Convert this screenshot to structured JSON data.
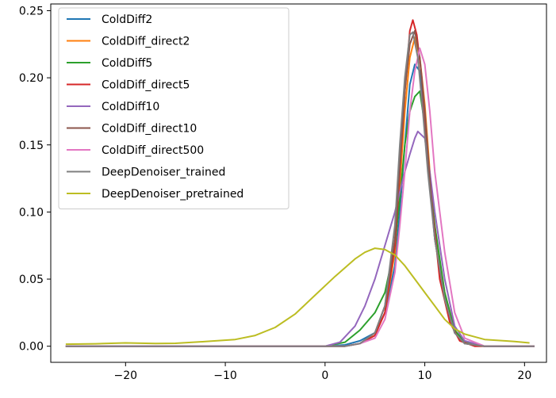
{
  "chart_data": {
    "type": "line",
    "xlim": [
      -27.5,
      22.2
    ],
    "ylim": [
      -0.012,
      0.255
    ],
    "xticks": [
      -20,
      -10,
      0,
      10,
      20
    ],
    "xtick_labels": [
      "−20",
      "−10",
      "0",
      "10",
      "20"
    ],
    "yticks": [
      0.0,
      0.05,
      0.1,
      0.15,
      0.2,
      0.25
    ],
    "ytick_labels": [
      "0.00",
      "0.05",
      "0.10",
      "0.15",
      "0.20",
      "0.25"
    ],
    "grid": false,
    "legend_position": "top-left",
    "series": [
      {
        "name": "ColdDiff2",
        "color": "#1f77b4",
        "points": [
          [
            -26,
            0.0
          ],
          [
            0,
            0.0
          ],
          [
            2,
            0.001
          ],
          [
            3.5,
            0.004
          ],
          [
            5,
            0.01
          ],
          [
            6,
            0.025
          ],
          [
            7,
            0.06
          ],
          [
            7.5,
            0.1
          ],
          [
            8,
            0.15
          ],
          [
            8.5,
            0.195
          ],
          [
            9,
            0.21
          ],
          [
            9.5,
            0.205
          ],
          [
            10,
            0.17
          ],
          [
            10.5,
            0.12
          ],
          [
            11,
            0.08
          ],
          [
            12,
            0.035
          ],
          [
            13,
            0.01
          ],
          [
            14,
            0.002
          ],
          [
            16,
            0.0
          ],
          [
            21,
            0.0
          ]
        ]
      },
      {
        "name": "ColdDiff_direct2",
        "color": "#ff7f0e",
        "points": [
          [
            -26,
            0.0
          ],
          [
            0,
            0.0
          ],
          [
            2,
            0.0
          ],
          [
            3.5,
            0.002
          ],
          [
            5,
            0.008
          ],
          [
            6,
            0.025
          ],
          [
            7,
            0.07
          ],
          [
            7.5,
            0.12
          ],
          [
            8,
            0.175
          ],
          [
            8.5,
            0.215
          ],
          [
            9,
            0.23
          ],
          [
            9.5,
            0.215
          ],
          [
            10,
            0.18
          ],
          [
            10.5,
            0.13
          ],
          [
            11,
            0.085
          ],
          [
            12,
            0.04
          ],
          [
            13,
            0.012
          ],
          [
            14,
            0.003
          ],
          [
            16,
            0.0
          ],
          [
            21,
            0.0
          ]
        ]
      },
      {
        "name": "ColdDiff5",
        "color": "#2ca02c",
        "points": [
          [
            -26,
            0.0
          ],
          [
            0,
            0.0
          ],
          [
            2,
            0.003
          ],
          [
            3.5,
            0.012
          ],
          [
            5,
            0.025
          ],
          [
            6,
            0.04
          ],
          [
            7,
            0.075
          ],
          [
            7.5,
            0.11
          ],
          [
            8,
            0.15
          ],
          [
            8.5,
            0.175
          ],
          [
            9,
            0.186
          ],
          [
            9.5,
            0.19
          ],
          [
            10,
            0.165
          ],
          [
            10.5,
            0.125
          ],
          [
            11,
            0.09
          ],
          [
            12,
            0.04
          ],
          [
            13,
            0.012
          ],
          [
            14,
            0.003
          ],
          [
            16,
            0.0
          ],
          [
            21,
            0.0
          ]
        ]
      },
      {
        "name": "ColdDiff_direct5",
        "color": "#d62728",
        "points": [
          [
            -26,
            0.0
          ],
          [
            0,
            0.0
          ],
          [
            2,
            0.0
          ],
          [
            3.5,
            0.002
          ],
          [
            5,
            0.008
          ],
          [
            6,
            0.025
          ],
          [
            7,
            0.075
          ],
          [
            7.5,
            0.13
          ],
          [
            8,
            0.19
          ],
          [
            8.5,
            0.235
          ],
          [
            8.8,
            0.243
          ],
          [
            9.2,
            0.232
          ],
          [
            9.7,
            0.2
          ],
          [
            10.2,
            0.15
          ],
          [
            10.8,
            0.1
          ],
          [
            11.5,
            0.05
          ],
          [
            12.5,
            0.018
          ],
          [
            13.5,
            0.004
          ],
          [
            15,
            0.0
          ],
          [
            21,
            0.0
          ]
        ]
      },
      {
        "name": "ColdDiff10",
        "color": "#9467bd",
        "points": [
          [
            -26,
            0.0
          ],
          [
            0,
            0.0
          ],
          [
            1.5,
            0.003
          ],
          [
            3,
            0.015
          ],
          [
            4,
            0.03
          ],
          [
            5,
            0.05
          ],
          [
            6,
            0.075
          ],
          [
            7,
            0.1
          ],
          [
            8,
            0.13
          ],
          [
            8.5,
            0.143
          ],
          [
            9,
            0.155
          ],
          [
            9.3,
            0.16
          ],
          [
            10,
            0.155
          ],
          [
            10.5,
            0.13
          ],
          [
            11,
            0.1
          ],
          [
            12,
            0.05
          ],
          [
            13,
            0.015
          ],
          [
            14,
            0.004
          ],
          [
            16,
            0.0
          ],
          [
            21,
            0.0
          ]
        ]
      },
      {
        "name": "ColdDiff_direct10",
        "color": "#8c564b",
        "points": [
          [
            -26,
            0.0
          ],
          [
            0,
            0.0
          ],
          [
            2,
            0.0
          ],
          [
            3.5,
            0.002
          ],
          [
            5,
            0.01
          ],
          [
            6,
            0.03
          ],
          [
            7,
            0.08
          ],
          [
            7.5,
            0.135
          ],
          [
            8,
            0.19
          ],
          [
            8.5,
            0.225
          ],
          [
            9,
            0.235
          ],
          [
            9.5,
            0.215
          ],
          [
            10,
            0.175
          ],
          [
            10.5,
            0.125
          ],
          [
            11,
            0.08
          ],
          [
            12,
            0.035
          ],
          [
            13,
            0.01
          ],
          [
            14,
            0.002
          ],
          [
            16,
            0.0
          ],
          [
            21,
            0.0
          ]
        ]
      },
      {
        "name": "ColdDiff_direct500",
        "color": "#e377c2",
        "points": [
          [
            -26,
            0.0
          ],
          [
            0,
            0.0
          ],
          [
            2,
            0.0
          ],
          [
            3.5,
            0.002
          ],
          [
            5,
            0.006
          ],
          [
            6,
            0.02
          ],
          [
            7,
            0.055
          ],
          [
            7.5,
            0.09
          ],
          [
            8,
            0.13
          ],
          [
            8.5,
            0.175
          ],
          [
            9,
            0.205
          ],
          [
            9.5,
            0.222
          ],
          [
            10,
            0.21
          ],
          [
            10.5,
            0.175
          ],
          [
            11,
            0.13
          ],
          [
            12,
            0.07
          ],
          [
            13,
            0.025
          ],
          [
            14,
            0.006
          ],
          [
            16,
            0.0
          ],
          [
            21,
            0.0
          ]
        ]
      },
      {
        "name": "DeepDenoiser_trained",
        "color": "#7f7f7f",
        "points": [
          [
            -26,
            0.0
          ],
          [
            0,
            0.0
          ],
          [
            2,
            0.0
          ],
          [
            3.5,
            0.002
          ],
          [
            5,
            0.01
          ],
          [
            6,
            0.03
          ],
          [
            7,
            0.09
          ],
          [
            7.5,
            0.15
          ],
          [
            8,
            0.2
          ],
          [
            8.5,
            0.232
          ],
          [
            8.8,
            0.234
          ],
          [
            9.3,
            0.215
          ],
          [
            9.8,
            0.175
          ],
          [
            10.3,
            0.13
          ],
          [
            11,
            0.08
          ],
          [
            12,
            0.035
          ],
          [
            13,
            0.01
          ],
          [
            14,
            0.002
          ],
          [
            16,
            0.0
          ],
          [
            21,
            0.0
          ]
        ]
      },
      {
        "name": "DeepDenoiser_pretrained",
        "color": "#bcbd22",
        "points": [
          [
            -26,
            0.0015
          ],
          [
            -23,
            0.0018
          ],
          [
            -20,
            0.0025
          ],
          [
            -17,
            0.002
          ],
          [
            -15,
            0.0022
          ],
          [
            -12,
            0.0035
          ],
          [
            -9,
            0.005
          ],
          [
            -7,
            0.008
          ],
          [
            -5,
            0.014
          ],
          [
            -3,
            0.024
          ],
          [
            -1,
            0.038
          ],
          [
            1,
            0.052
          ],
          [
            3,
            0.065
          ],
          [
            4,
            0.07
          ],
          [
            5,
            0.073
          ],
          [
            6,
            0.072
          ],
          [
            7,
            0.068
          ],
          [
            8,
            0.06
          ],
          [
            9,
            0.05
          ],
          [
            10,
            0.04
          ],
          [
            11,
            0.03
          ],
          [
            12,
            0.02
          ],
          [
            13,
            0.013
          ],
          [
            14,
            0.009
          ],
          [
            15,
            0.007
          ],
          [
            16,
            0.005
          ],
          [
            18,
            0.004
          ],
          [
            19,
            0.0035
          ],
          [
            20.5,
            0.0025
          ]
        ]
      }
    ]
  }
}
